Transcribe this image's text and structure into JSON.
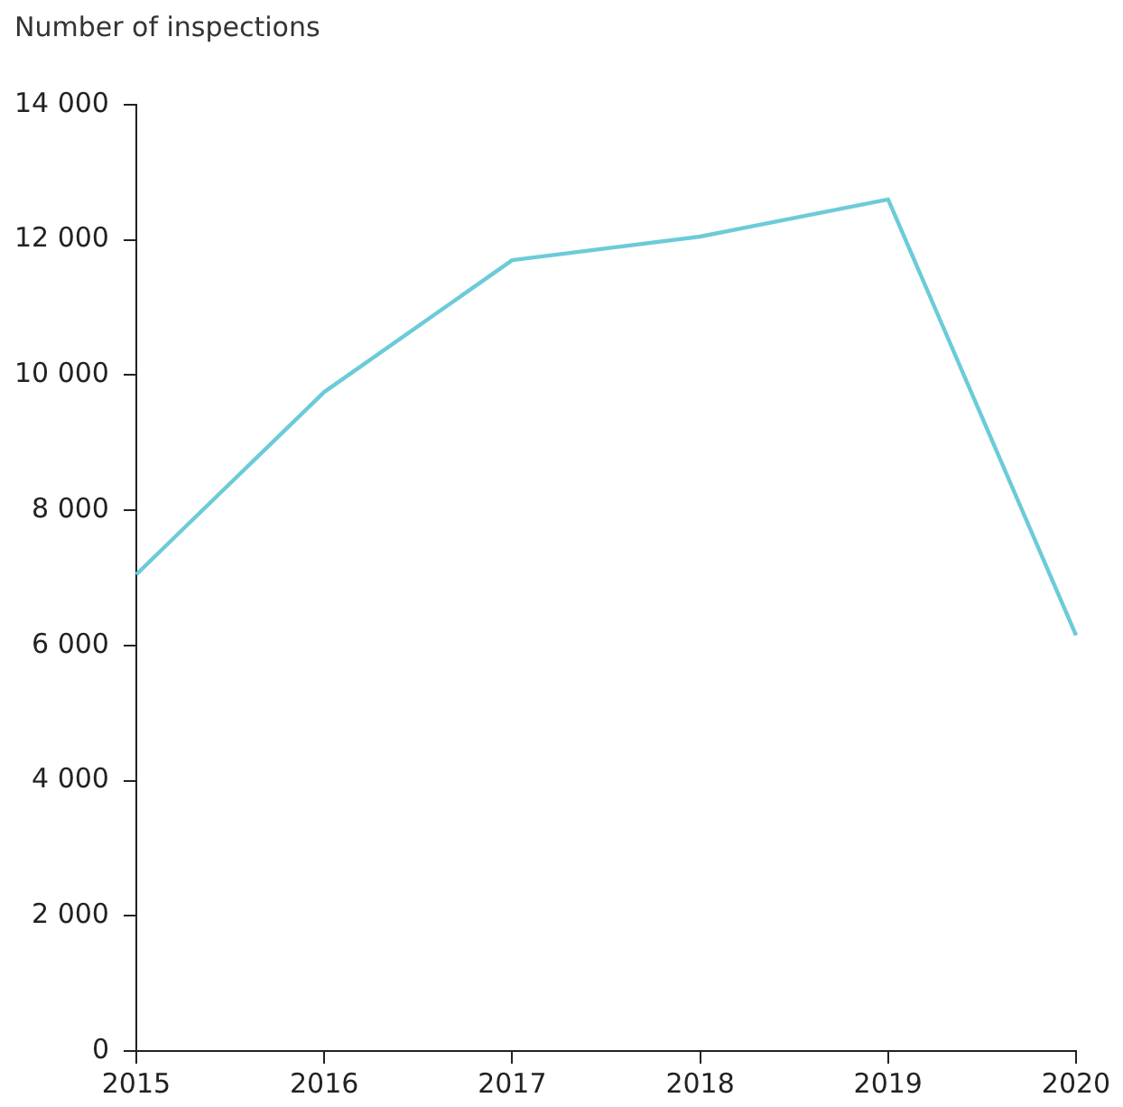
{
  "chart_data": {
    "type": "line",
    "ylabel": "Number of inspections",
    "categories": [
      "2015",
      "2016",
      "2017",
      "2018",
      "2019",
      "2020"
    ],
    "series": [
      {
        "color": "#6ccbd8",
        "values": [
          7050,
          9750,
          11700,
          12050,
          12600,
          6150
        ]
      }
    ],
    "ylim": [
      0,
      14000
    ],
    "yticks": [
      {
        "value": 0,
        "label": "0"
      },
      {
        "value": 2000,
        "label": "2 000"
      },
      {
        "value": 4000,
        "label": "4 000"
      },
      {
        "value": 6000,
        "label": "6 000"
      },
      {
        "value": 8000,
        "label": "8 000"
      },
      {
        "value": 10000,
        "label": "10 000"
      },
      {
        "value": 12000,
        "label": "12 000"
      },
      {
        "value": 14000,
        "label": "14 000"
      }
    ],
    "grid": false,
    "legend": false,
    "marker": "none",
    "line_style": "solid"
  }
}
